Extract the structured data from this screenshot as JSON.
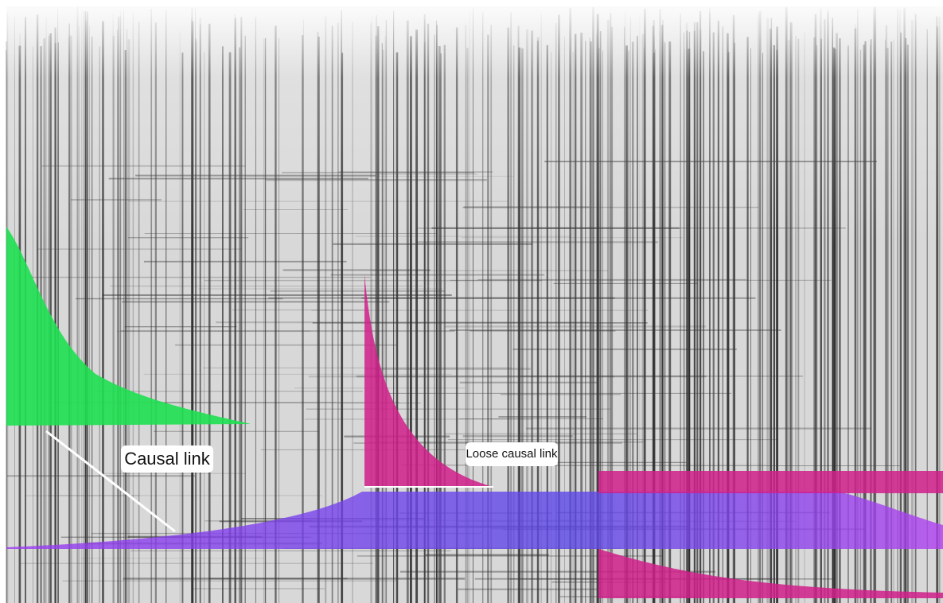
{
  "labels": {
    "causal_link": "Causal link",
    "loose_causal_link": "Loose causal link"
  }
}
